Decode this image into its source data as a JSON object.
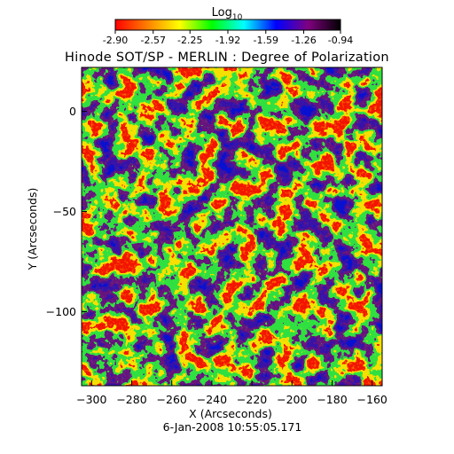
{
  "chart_data": {
    "type": "heatmap",
    "title": "Hinode SOT/SP - MERLIN : Degree of Polarization",
    "xlabel": "X (Arcseconds)",
    "ylabel": "Y (Arcseconds)",
    "footer": "6-Jan-2008 10:55:05.171",
    "colorbar": {
      "label_main": "Log",
      "label_sub": "10",
      "ticks": [
        "-2.90",
        "-2.57",
        "-2.25",
        "-1.92",
        "-1.59",
        "-1.26",
        "-0.94"
      ],
      "range": [
        -2.9,
        -0.94
      ],
      "colormap": [
        "#ff0000",
        "#ff8000",
        "#ffff00",
        "#00ff00",
        "#00ffff",
        "#0000ff",
        "#800080",
        "#000000"
      ]
    },
    "xlim": [
      -305,
      -155
    ],
    "ylim": [
      -137,
      22
    ],
    "x_ticks": [
      -300,
      -280,
      -260,
      -240,
      -220,
      -200,
      -180,
      -160
    ],
    "y_ticks": [
      0,
      -50,
      -100
    ],
    "grid": false
  }
}
